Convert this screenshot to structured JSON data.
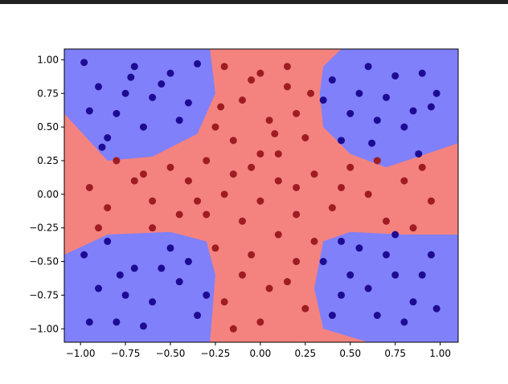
{
  "chart_data": {
    "type": "scatter",
    "xlim": [
      -1.09,
      1.1
    ],
    "ylim": [
      -1.1,
      1.08
    ],
    "xticks": [
      {
        "value": -1,
        "label": "−1.00"
      },
      {
        "value": -0.75,
        "label": "−0.75"
      },
      {
        "value": -0.5,
        "label": "−0.50"
      },
      {
        "value": -0.25,
        "label": "−0.25"
      },
      {
        "value": 0,
        "label": "0.00"
      },
      {
        "value": 0.25,
        "label": "0.25"
      },
      {
        "value": 0.5,
        "label": "0.50"
      },
      {
        "value": 0.75,
        "label": "0.75"
      },
      {
        "value": 1,
        "label": "1.00"
      }
    ],
    "yticks": [
      {
        "value": -1,
        "label": "−1.00"
      },
      {
        "value": -0.75,
        "label": "−0.75"
      },
      {
        "value": -0.5,
        "label": "−0.50"
      },
      {
        "value": -0.25,
        "label": "−0.25"
      },
      {
        "value": 0,
        "label": "0.00"
      },
      {
        "value": 0.25,
        "label": "0.25"
      },
      {
        "value": 0.5,
        "label": "0.50"
      },
      {
        "value": 0.75,
        "label": "0.75"
      },
      {
        "value": 1,
        "label": "1.00"
      }
    ],
    "background_color": "#f4837f",
    "regions": [
      {
        "color": "#8080fb",
        "x": [
          -1.09,
          -0.28,
          -0.25,
          -0.35,
          -0.6,
          -0.85,
          -1.09
        ],
        "y": [
          1.08,
          1.08,
          0.75,
          0.45,
          0.28,
          0.25,
          0.6
        ]
      },
      {
        "color": "#8080fb",
        "x": [
          0.45,
          1.1,
          1.1,
          0.7,
          0.5,
          0.35,
          0.33,
          0.35
        ],
        "y": [
          1.08,
          1.08,
          0.38,
          0.2,
          0.3,
          0.5,
          0.75,
          0.95
        ]
      },
      {
        "color": "#8080fb",
        "x": [
          -1.09,
          -0.85,
          -0.5,
          -0.3,
          -0.25,
          -0.28,
          -1.09
        ],
        "y": [
          -0.45,
          -0.3,
          -0.28,
          -0.35,
          -0.6,
          -1.1,
          -1.1
        ]
      },
      {
        "color": "#8080fb",
        "x": [
          0.35,
          0.5,
          0.8,
          1.1,
          1.1,
          0.6,
          0.35,
          0.3
        ],
        "y": [
          -0.35,
          -0.28,
          -0.3,
          -0.3,
          -1.1,
          -1.1,
          -1.0,
          -0.7
        ]
      }
    ],
    "series": [
      {
        "color": "#1e0b94",
        "x": [
          -0.98,
          -0.9,
          -0.8,
          -0.7,
          -0.6,
          -0.5,
          -0.45,
          -0.35,
          -0.95,
          -0.85,
          -0.75,
          -0.65,
          -0.55,
          -0.4,
          -0.88,
          -0.72,
          0.4,
          0.5,
          0.6,
          0.7,
          0.8,
          0.9,
          0.95,
          0.45,
          0.55,
          0.65,
          0.75,
          0.85,
          0.98,
          0.88,
          0.62,
          0.35,
          -0.98,
          -0.9,
          -0.8,
          -0.7,
          -0.6,
          -0.5,
          -0.45,
          -0.35,
          -0.95,
          -0.85,
          -0.75,
          -0.65,
          -0.55,
          -0.4,
          -0.3,
          -0.78,
          0.35,
          0.45,
          0.55,
          0.65,
          0.75,
          0.85,
          0.95,
          0.4,
          0.5,
          0.6,
          0.7,
          0.8,
          0.9,
          0.98,
          0.75,
          0.45
        ],
        "values": [
          0.98,
          0.8,
          0.6,
          0.95,
          0.72,
          0.9,
          0.55,
          0.97,
          0.62,
          0.42,
          0.75,
          0.5,
          0.82,
          0.68,
          0.35,
          0.87,
          0.85,
          0.6,
          0.95,
          0.72,
          0.5,
          0.9,
          0.65,
          0.4,
          0.75,
          0.55,
          0.88,
          0.62,
          0.75,
          0.3,
          0.38,
          0.7,
          -0.45,
          -0.7,
          -0.95,
          -0.55,
          -0.8,
          -0.4,
          -0.65,
          -0.9,
          -0.95,
          -0.35,
          -0.75,
          -0.98,
          -0.55,
          -0.5,
          -0.75,
          -0.6,
          -0.5,
          -0.75,
          -0.4,
          -0.9,
          -0.6,
          -0.8,
          -0.45,
          -0.9,
          -0.6,
          -0.7,
          -0.45,
          -0.95,
          -0.6,
          -0.85,
          -0.3,
          -0.35
        ]
      },
      {
        "color": "#9e1c22",
        "x": [
          -0.2,
          0.0,
          0.15,
          -0.1,
          0.2,
          -0.25,
          0.05,
          -0.15,
          0.25,
          0.1,
          -0.05,
          -0.3,
          0.3,
          -0.5,
          -0.7,
          -0.95,
          -0.85,
          -0.6,
          -0.4,
          -0.2,
          0.0,
          0.2,
          0.4,
          0.6,
          0.8,
          0.95,
          0.9,
          0.7,
          0.5,
          -0.8,
          -0.6,
          -0.9,
          0.85,
          -0.1,
          0.1,
          -0.25,
          0.2,
          -0.1,
          0.05,
          -0.2,
          0.25,
          0.0,
          -0.15,
          0.15,
          -0.05,
          0.3,
          -0.3,
          0.15,
          -0.05,
          0.28,
          -0.22,
          0.08,
          -0.45,
          0.45,
          0.65,
          -0.65,
          0.0,
          0.2,
          -0.15,
          0.1,
          -0.35
        ],
        "values": [
          0.95,
          0.9,
          0.8,
          0.7,
          0.6,
          0.5,
          0.55,
          0.4,
          0.42,
          0.3,
          0.2,
          0.25,
          0.15,
          0.2,
          0.1,
          0.05,
          -0.1,
          -0.05,
          0.1,
          0.0,
          -0.05,
          0.05,
          -0.1,
          0.0,
          0.1,
          -0.05,
          0.2,
          -0.2,
          0.2,
          0.25,
          -0.25,
          -0.25,
          -0.25,
          -0.2,
          -0.3,
          -0.4,
          -0.5,
          -0.6,
          -0.7,
          -0.8,
          -0.85,
          -0.95,
          -1.0,
          -0.65,
          -0.45,
          -0.35,
          -0.15,
          0.95,
          0.85,
          0.75,
          0.65,
          0.45,
          -0.15,
          0.05,
          0.25,
          0.15,
          0.3,
          -0.15,
          0.15,
          0.1,
          -0.05
        ]
      }
    ]
  }
}
